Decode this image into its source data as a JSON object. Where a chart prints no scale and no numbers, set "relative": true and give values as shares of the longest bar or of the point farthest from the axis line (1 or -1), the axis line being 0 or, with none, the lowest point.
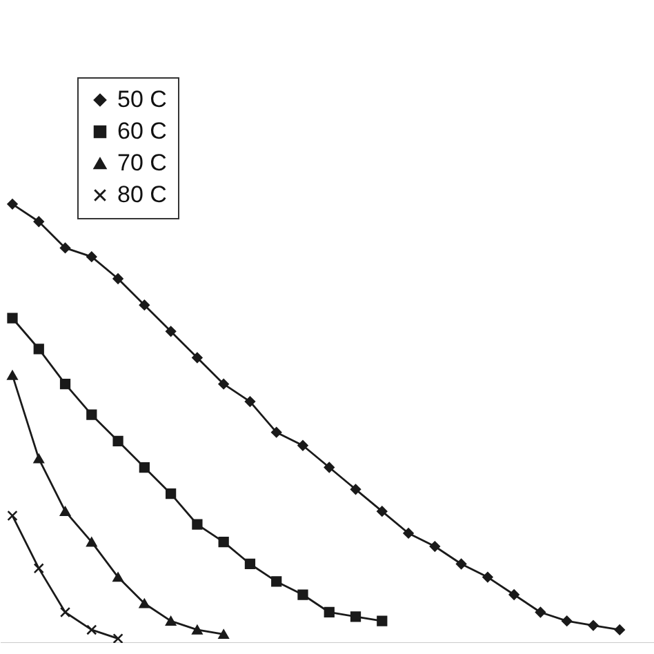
{
  "chart_data": {
    "type": "line",
    "relative": true,
    "tick_labels": false,
    "legend": "top left",
    "grid": false,
    "line_style": "solid",
    "categories": [
      null,
      null,
      null,
      null,
      null,
      null,
      null,
      null,
      null,
      null,
      null,
      null,
      null,
      null,
      null,
      null,
      null,
      null,
      null,
      null,
      null,
      null,
      null,
      null
    ],
    "series": [
      {
        "name": "50 C",
        "color": "#1a1a1a",
        "marker": "diamond",
        "values": [
          1,
          0.96,
          0.9,
          0.88,
          0.83,
          0.77,
          0.71,
          0.65,
          0.59,
          0.55,
          0.48,
          0.45,
          0.4,
          0.35,
          0.3,
          0.25,
          0.22,
          0.18,
          0.15,
          0.11,
          0.07,
          0.05,
          0.04,
          0.03
        ]
      },
      {
        "name": "60 C",
        "color": "#1a1a1a",
        "marker": "square",
        "values": [
          0.74,
          0.67,
          0.59,
          0.52,
          0.46,
          0.4,
          0.34,
          0.27,
          0.23,
          0.18,
          0.14,
          0.11,
          0.07,
          0.06,
          0.05,
          null,
          null,
          null,
          null,
          null,
          null,
          null,
          null,
          null
        ]
      },
      {
        "name": "70 C",
        "color": "#1a1a1a",
        "marker": "triangle",
        "values": [
          0.61,
          0.42,
          0.3,
          0.23,
          0.15,
          0.09,
          0.05,
          0.03,
          0.02,
          null,
          null,
          null,
          null,
          null,
          null,
          null,
          null,
          null,
          null,
          null,
          null,
          null,
          null,
          null
        ]
      },
      {
        "name": "80 C",
        "color": "#1a1a1a",
        "marker": "cross",
        "values": [
          0.29,
          0.17,
          0.07,
          0.03,
          0.01,
          null,
          null,
          null,
          null,
          null,
          null,
          null,
          null,
          null,
          null,
          null,
          null,
          null,
          null,
          null,
          null,
          null,
          null,
          null
        ]
      }
    ]
  }
}
